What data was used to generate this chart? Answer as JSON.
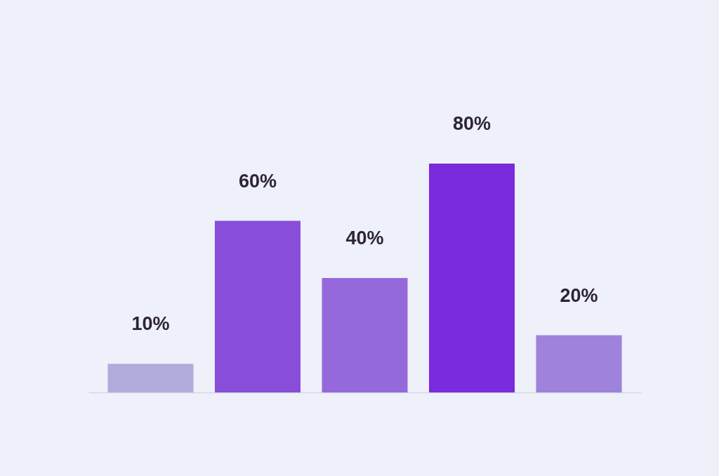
{
  "chart_data": {
    "type": "bar",
    "categories": [
      null,
      null,
      null,
      null,
      null
    ],
    "values": [
      10,
      60,
      40,
      80,
      20
    ],
    "colors": [
      "#b0acdc",
      "#884dd9",
      "#9568dc",
      "#7a2bdb",
      "#9e82dc"
    ],
    "value_labels": [
      "10%",
      "60%",
      "40%",
      "80%",
      "20%"
    ],
    "grid": false
  }
}
